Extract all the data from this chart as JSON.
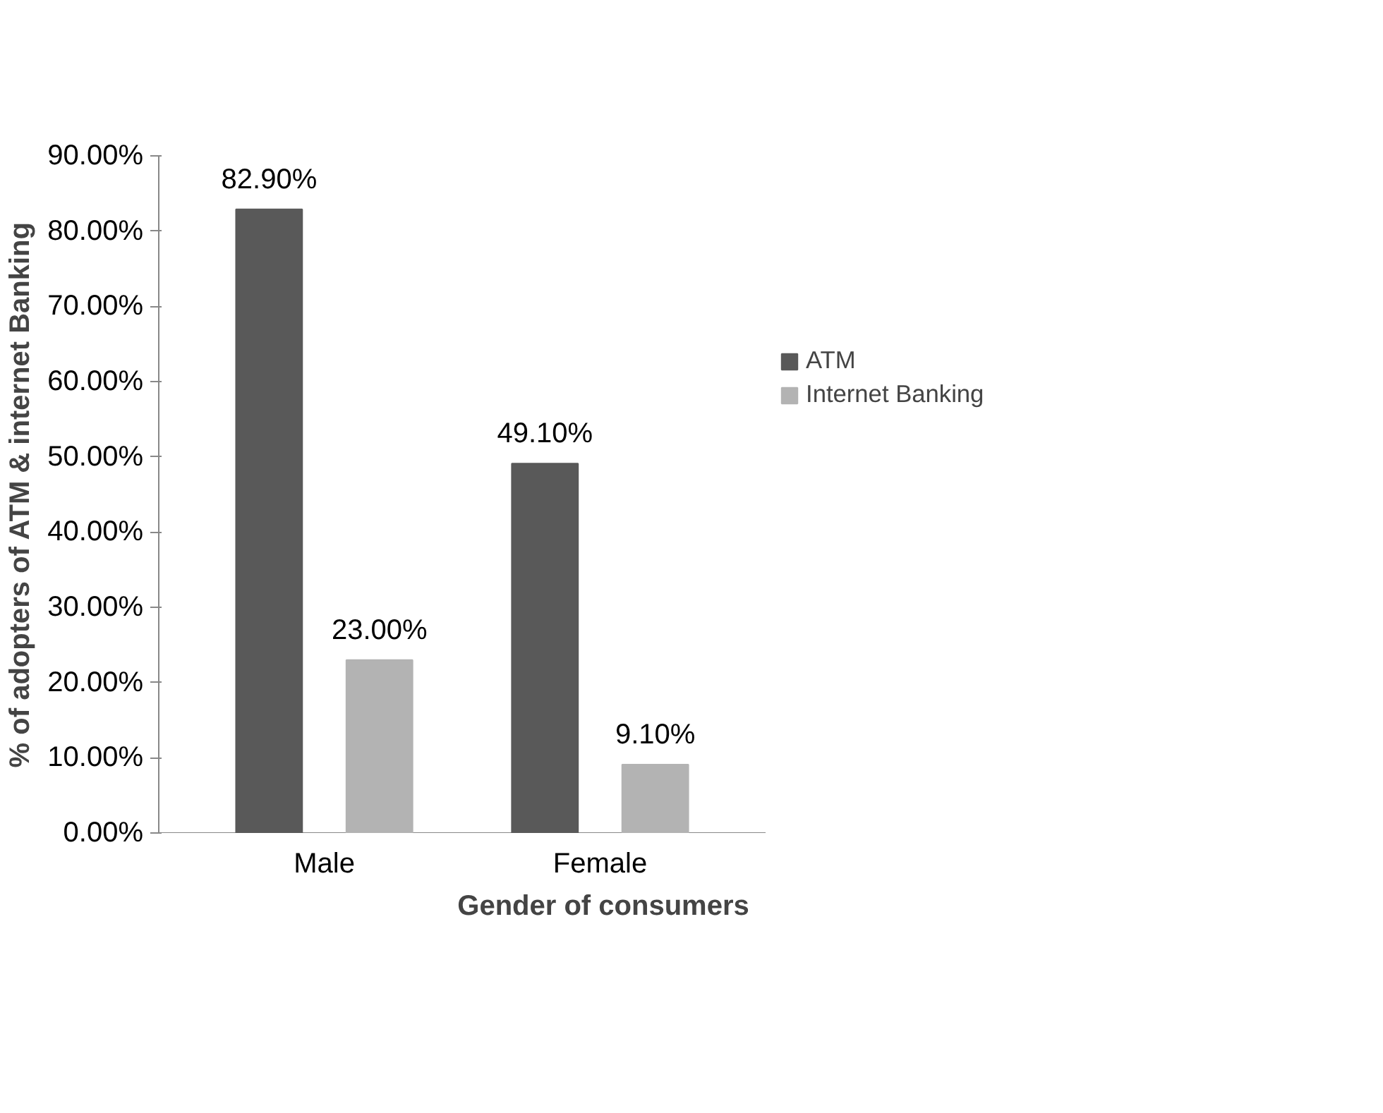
{
  "chart_data": {
    "type": "bar",
    "xlabel": "Gender of consumers",
    "ylabel": "% of adopters of ATM & internet Banking",
    "categories": [
      "Male",
      "Female"
    ],
    "series": [
      {
        "name": "ATM",
        "color": "#595959",
        "values": [
          82.9,
          49.1
        ],
        "value_labels": [
          "82.90%",
          "49.10%"
        ]
      },
      {
        "name": "Internet Banking",
        "color": "#b3b3b3",
        "values": [
          23.0,
          9.1
        ],
        "value_labels": [
          "23.00%",
          "9.10%"
        ]
      }
    ],
    "ylim": [
      0,
      90
    ],
    "yticks": [
      {
        "value": 0,
        "label": "0.00%"
      },
      {
        "value": 10,
        "label": "10.00%"
      },
      {
        "value": 20,
        "label": "20.00%"
      },
      {
        "value": 30,
        "label": "30.00%"
      },
      {
        "value": 40,
        "label": "40.00%"
      },
      {
        "value": 50,
        "label": "50.00%"
      },
      {
        "value": 60,
        "label": "60.00%"
      },
      {
        "value": 70,
        "label": "70.00%"
      },
      {
        "value": 80,
        "label": "80.00%"
      },
      {
        "value": 90,
        "label": "90.00%"
      }
    ],
    "grid": false,
    "legend": "right"
  }
}
